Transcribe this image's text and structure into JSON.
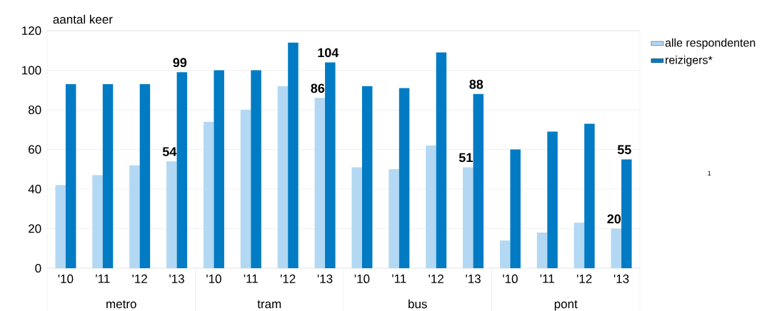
{
  "chart_data": {
    "type": "bar",
    "ylabel": "aantal keer",
    "categories": [
      "'10",
      "'11",
      "'12",
      "'13",
      "'10",
      "'11",
      "'12",
      "'13",
      "'10",
      "'11",
      "'12",
      "'13",
      "'10",
      "'11",
      "'12",
      "'13"
    ],
    "series": [
      {
        "name": "alle respondenten",
        "color": "#b3d8f3",
        "values": [
          42,
          47,
          52,
          54,
          74,
          80,
          92,
          86,
          51,
          50,
          62,
          51,
          14,
          18,
          23,
          20
        ],
        "value_labels": [
          null,
          null,
          null,
          "54",
          null,
          null,
          null,
          "86",
          null,
          null,
          null,
          "51",
          null,
          null,
          null,
          "20"
        ]
      },
      {
        "name": "reizigers*",
        "color": "#007bc4",
        "values": [
          93,
          93,
          93,
          99,
          100,
          100,
          114,
          104,
          92,
          91,
          109,
          88,
          60,
          69,
          73,
          55
        ],
        "value_labels": [
          null,
          null,
          null,
          "99",
          null,
          null,
          null,
          "104",
          null,
          null,
          null,
          "88",
          null,
          null,
          null,
          "55"
        ]
      }
    ],
    "ylim": [
      0,
      120
    ],
    "yticks": [
      0,
      20,
      40,
      60,
      80,
      100,
      120
    ],
    "grid": "y",
    "legend": "top right",
    "annotations": [
      "metro",
      "tram",
      "bus",
      "pont",
      "1"
    ]
  }
}
